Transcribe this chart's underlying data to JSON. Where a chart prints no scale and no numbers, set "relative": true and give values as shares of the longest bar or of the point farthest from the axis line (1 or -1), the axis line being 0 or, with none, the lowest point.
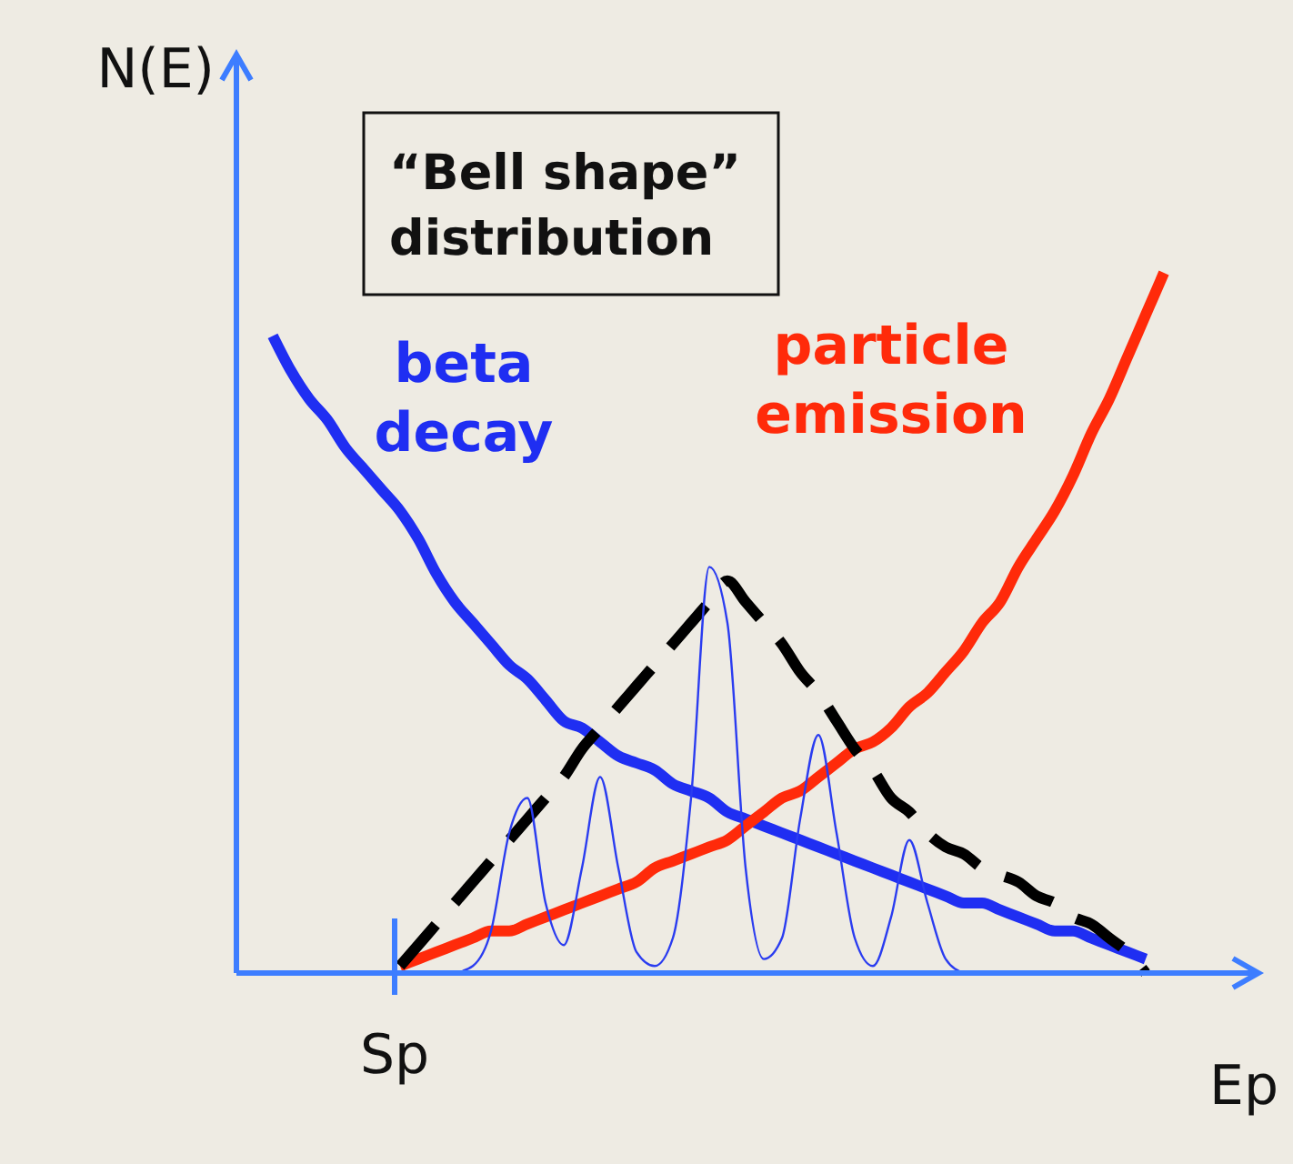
{
  "chart_data": {
    "type": "line",
    "relative": true,
    "ylabel": "N(E)",
    "xlabel": "Ep",
    "annotations": [
      "“Bell shape” distribution",
      "Sp"
    ],
    "categories": [
      null,
      null,
      null,
      null,
      null,
      null,
      null,
      null,
      null,
      null,
      null,
      null,
      null,
      null,
      null,
      null,
      null,
      null,
      null,
      null,
      null,
      null,
      null,
      null,
      null,
      null,
      null,
      null,
      null,
      null,
      null,
      null,
      null,
      null,
      null,
      null,
      null,
      null,
      null,
      null,
      null,
      null,
      null,
      null,
      null,
      null,
      null,
      null,
      null,
      null,
      null,
      null,
      null,
      null,
      null,
      null,
      null
    ],
    "series": [
      {
        "name": "beta decay",
        "color": "#1f2ef2",
        "values": [
          null,
          null,
          0.91,
          0.86,
          0.82,
          0.79,
          0.75,
          0.72,
          0.69,
          0.66,
          0.62,
          0.57,
          0.53,
          0.5,
          0.47,
          0.44,
          0.42,
          0.39,
          0.36,
          0.35,
          0.33,
          0.31,
          0.3,
          0.29,
          0.27,
          0.26,
          0.25,
          0.23,
          0.22,
          0.21,
          0.2,
          0.19,
          0.18,
          0.17,
          0.16,
          0.15,
          0.14,
          0.13,
          0.12,
          0.11,
          0.1,
          0.1,
          0.09,
          0.08,
          0.07,
          0.06,
          0.06,
          0.05,
          0.04,
          0.03,
          0.02,
          null,
          null,
          null,
          null,
          null,
          null
        ]
      },
      {
        "name": "particle emission",
        "color": "#ff2a0a",
        "values": [
          null,
          null,
          null,
          null,
          null,
          null,
          null,
          null,
          null,
          0.01,
          0.02,
          0.03,
          0.04,
          0.05,
          0.06,
          0.06,
          0.07,
          0.08,
          0.09,
          0.1,
          0.11,
          0.12,
          0.13,
          0.15,
          0.16,
          0.17,
          0.18,
          0.19,
          0.21,
          0.23,
          0.25,
          0.26,
          0.28,
          0.3,
          0.32,
          0.33,
          0.35,
          0.38,
          0.4,
          0.43,
          0.46,
          0.5,
          0.53,
          0.58,
          0.62,
          0.66,
          0.71,
          0.77,
          0.82,
          0.88,
          0.94,
          1,
          null,
          null,
          null,
          null,
          null
        ]
      },
      {
        "color": "#000000",
        "line_style": "dashed",
        "values": [
          null,
          null,
          null,
          null,
          null,
          null,
          null,
          null,
          null,
          0.01,
          0.04,
          0.07,
          0.1,
          0.13,
          0.16,
          0.19,
          0.22,
          0.25,
          0.28,
          0.32,
          0.35,
          0.38,
          0.41,
          0.44,
          0.47,
          0.5,
          0.53,
          0.56,
          0.53,
          0.5,
          0.47,
          0.43,
          0.4,
          0.36,
          0.32,
          0.29,
          0.25,
          0.23,
          0.2,
          0.18,
          0.17,
          0.15,
          0.14,
          0.13,
          0.11,
          0.1,
          0.08,
          0.07,
          0.05,
          0.03,
          0,
          null,
          null,
          null,
          null,
          null,
          null
        ]
      },
      {
        "color": "#2a3cf0",
        "values": [
          null,
          null,
          null,
          null,
          null,
          null,
          null,
          null,
          null,
          null,
          null,
          null,
          0,
          0.01,
          0.06,
          0.2,
          0.25,
          0.1,
          0.04,
          0.15,
          0.28,
          0.15,
          0.03,
          0.01,
          0.05,
          0.25,
          0.58,
          0.5,
          0.15,
          0.02,
          0.05,
          0.22,
          0.34,
          0.2,
          0.05,
          0.01,
          0.08,
          0.19,
          0.1,
          0.02,
          0,
          null,
          null,
          null,
          null,
          null,
          null,
          null,
          null,
          null,
          null,
          null,
          null,
          null,
          null,
          null,
          null
        ]
      }
    ]
  }
}
